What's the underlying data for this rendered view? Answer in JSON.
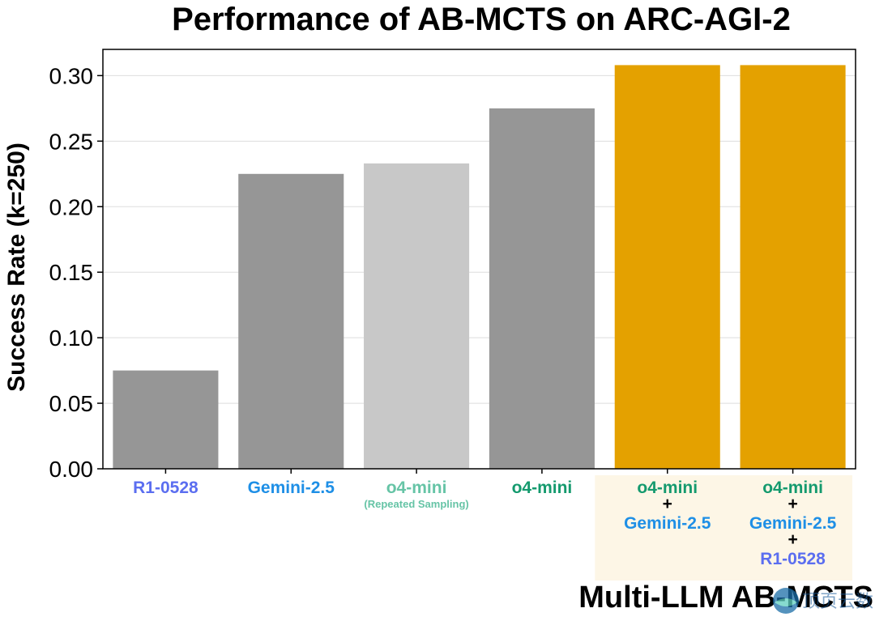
{
  "chart_data": {
    "type": "bar",
    "title": "Performance of AB-MCTS on ARC-AGI-2",
    "ylabel": "Success Rate (k=250)",
    "ylim": [
      0,
      0.32
    ],
    "yticks": [
      "0.00",
      "0.05",
      "0.10",
      "0.15",
      "0.20",
      "0.25",
      "0.30"
    ],
    "grid": true,
    "categories": [
      {
        "lines": [
          {
            "text": "R1-0528",
            "color": "#5b6ef0"
          }
        ],
        "value": 0.075,
        "bar_color": "#969696"
      },
      {
        "lines": [
          {
            "text": "Gemini-2.5",
            "color": "#1e8fe6"
          }
        ],
        "value": 0.225,
        "bar_color": "#969696"
      },
      {
        "lines": [
          {
            "text": "o4-mini",
            "color": "#66c4a6"
          }
        ],
        "sublabel": "(Repeated Sampling)",
        "sublabel_color": "#66c4a6",
        "value": 0.233,
        "bar_color": "#c8c8c8"
      },
      {
        "lines": [
          {
            "text": "o4-mini",
            "color": "#149a6e"
          }
        ],
        "value": 0.275,
        "bar_color": "#969696"
      },
      {
        "lines": [
          {
            "text": "o4-mini",
            "color": "#149a6e"
          },
          {
            "text": "Gemini-2.5",
            "color": "#1e8fe6"
          }
        ],
        "value": 0.308,
        "bar_color": "#e4a100"
      },
      {
        "lines": [
          {
            "text": "o4-mini",
            "color": "#149a6e"
          },
          {
            "text": "Gemini-2.5",
            "color": "#1e8fe6"
          },
          {
            "text": "R1-0528",
            "color": "#5b6ef0"
          }
        ],
        "value": 0.308,
        "bar_color": "#e4a100"
      }
    ],
    "plus_sign": "+",
    "group_label": "Multi-LLM AB-MCTS",
    "group_highlight_color": "#fdf6e6",
    "watermark": "顶页云数"
  }
}
